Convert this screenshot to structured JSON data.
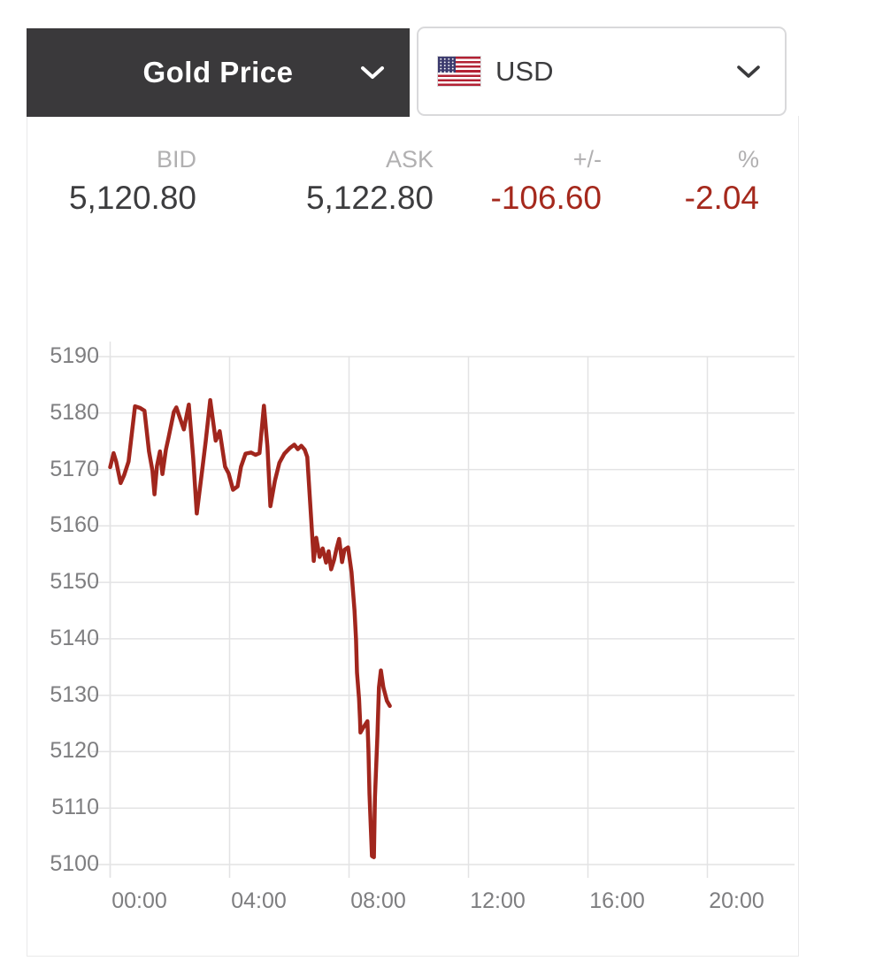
{
  "selectors": {
    "metal": {
      "label": "Gold Price",
      "icon": "chevron-down-icon"
    },
    "currency": {
      "label": "USD",
      "flag": "usa-flag-icon",
      "icon": "chevron-down-icon"
    }
  },
  "quote": {
    "bid": {
      "label": "BID",
      "value": "5,120.80"
    },
    "ask": {
      "label": "ASK",
      "value": "5,122.80"
    },
    "change": {
      "label": "+/-",
      "value": "-106.60"
    },
    "percent": {
      "label": "%",
      "value": "-2.04"
    }
  },
  "colors": {
    "tab_background": "#3a393b",
    "negative_text": "#a5291d",
    "chart_line": "#a1261d",
    "gridline": "#e3e3e4",
    "tick_label": "#7e7e80",
    "quote_label": "#b1b0b1",
    "quote_value": "#3d3d3f"
  },
  "chart_data": {
    "type": "line",
    "title": "",
    "xlabel": "",
    "ylabel": "",
    "grid": true,
    "legend": "none",
    "x_ticks": [
      "00:00",
      "04:00",
      "08:00",
      "12:00",
      "16:00",
      "20:00"
    ],
    "y_ticks": [
      5190,
      5180,
      5170,
      5160,
      5150,
      5140,
      5130,
      5120,
      5110,
      5100
    ],
    "ylim": [
      5100,
      5190
    ],
    "xlim_hours": [
      0,
      22.9
    ],
    "series": [
      {
        "name": "Gold Price USD",
        "points": [
          [
            "00:00",
            5170.4
          ],
          [
            "00:07",
            5172.9
          ],
          [
            "00:12",
            5171.4
          ],
          [
            "00:21",
            5167.6
          ],
          [
            "00:28",
            5169.0
          ],
          [
            "00:37",
            5171.4
          ],
          [
            "00:44",
            5176.8
          ],
          [
            "00:50",
            5181.2
          ],
          [
            "01:00",
            5180.9
          ],
          [
            "01:09",
            5180.4
          ],
          [
            "01:18",
            5173.2
          ],
          [
            "01:25",
            5169.8
          ],
          [
            "01:29",
            5165.6
          ],
          [
            "01:34",
            5170.6
          ],
          [
            "01:40",
            5173.2
          ],
          [
            "01:45",
            5169.2
          ],
          [
            "01:52",
            5173.5
          ],
          [
            "01:57",
            5175.5
          ],
          [
            "02:08",
            5180.2
          ],
          [
            "02:13",
            5181.0
          ],
          [
            "02:28",
            5177.1
          ],
          [
            "02:38",
            5181.5
          ],
          [
            "02:47",
            5172.0
          ],
          [
            "02:54",
            5162.2
          ],
          [
            "03:05",
            5170.0
          ],
          [
            "03:12",
            5175.0
          ],
          [
            "03:21",
            5182.3
          ],
          [
            "03:32",
            5175.1
          ],
          [
            "03:40",
            5176.8
          ],
          [
            "03:51",
            5170.5
          ],
          [
            "03:58",
            5169.3
          ],
          [
            "04:07",
            5166.4
          ],
          [
            "04:16",
            5167.0
          ],
          [
            "04:23",
            5170.5
          ],
          [
            "04:32",
            5172.8
          ],
          [
            "04:43",
            5173.0
          ],
          [
            "04:52",
            5172.6
          ],
          [
            "05:00",
            5172.9
          ],
          [
            "05:09",
            5181.3
          ],
          [
            "05:16",
            5174.0
          ],
          [
            "05:22",
            5163.5
          ],
          [
            "05:31",
            5168.0
          ],
          [
            "05:40",
            5171.2
          ],
          [
            "05:50",
            5172.8
          ],
          [
            "06:01",
            5173.8
          ],
          [
            "06:10",
            5174.4
          ],
          [
            "06:17",
            5173.6
          ],
          [
            "06:24",
            5174.2
          ],
          [
            "06:31",
            5173.5
          ],
          [
            "06:36",
            5172.2
          ],
          [
            "06:44",
            5161.0
          ],
          [
            "06:49",
            5153.8
          ],
          [
            "06:54",
            5157.9
          ],
          [
            "07:01",
            5154.5
          ],
          [
            "07:07",
            5156.0
          ],
          [
            "07:14",
            5153.5
          ],
          [
            "07:19",
            5155.5
          ],
          [
            "07:24",
            5152.3
          ],
          [
            "07:30",
            5154.0
          ],
          [
            "07:35",
            5156.0
          ],
          [
            "07:40",
            5157.7
          ],
          [
            "07:46",
            5153.6
          ],
          [
            "07:51",
            5155.8
          ],
          [
            "07:58",
            5156.2
          ],
          [
            "08:05",
            5151.8
          ],
          [
            "08:11",
            5145.0
          ],
          [
            "08:14",
            5139.9
          ],
          [
            "08:16",
            5134.0
          ],
          [
            "08:20",
            5129.4
          ],
          [
            "08:22",
            5125.7
          ],
          [
            "08:23",
            5123.4
          ],
          [
            "08:28",
            5124.2
          ],
          [
            "08:37",
            5125.4
          ],
          [
            "08:39",
            5120.4
          ],
          [
            "08:41",
            5112.5
          ],
          [
            "08:44",
            5105.8
          ],
          [
            "08:46",
            5101.5
          ],
          [
            "08:50",
            5101.3
          ],
          [
            "08:52",
            5112.0
          ],
          [
            "08:57",
            5123.0
          ],
          [
            "09:00",
            5131.4
          ],
          [
            "09:04",
            5134.4
          ],
          [
            "09:09",
            5131.4
          ],
          [
            "09:16",
            5129.0
          ],
          [
            "09:22",
            5128.1
          ]
        ]
      }
    ]
  }
}
